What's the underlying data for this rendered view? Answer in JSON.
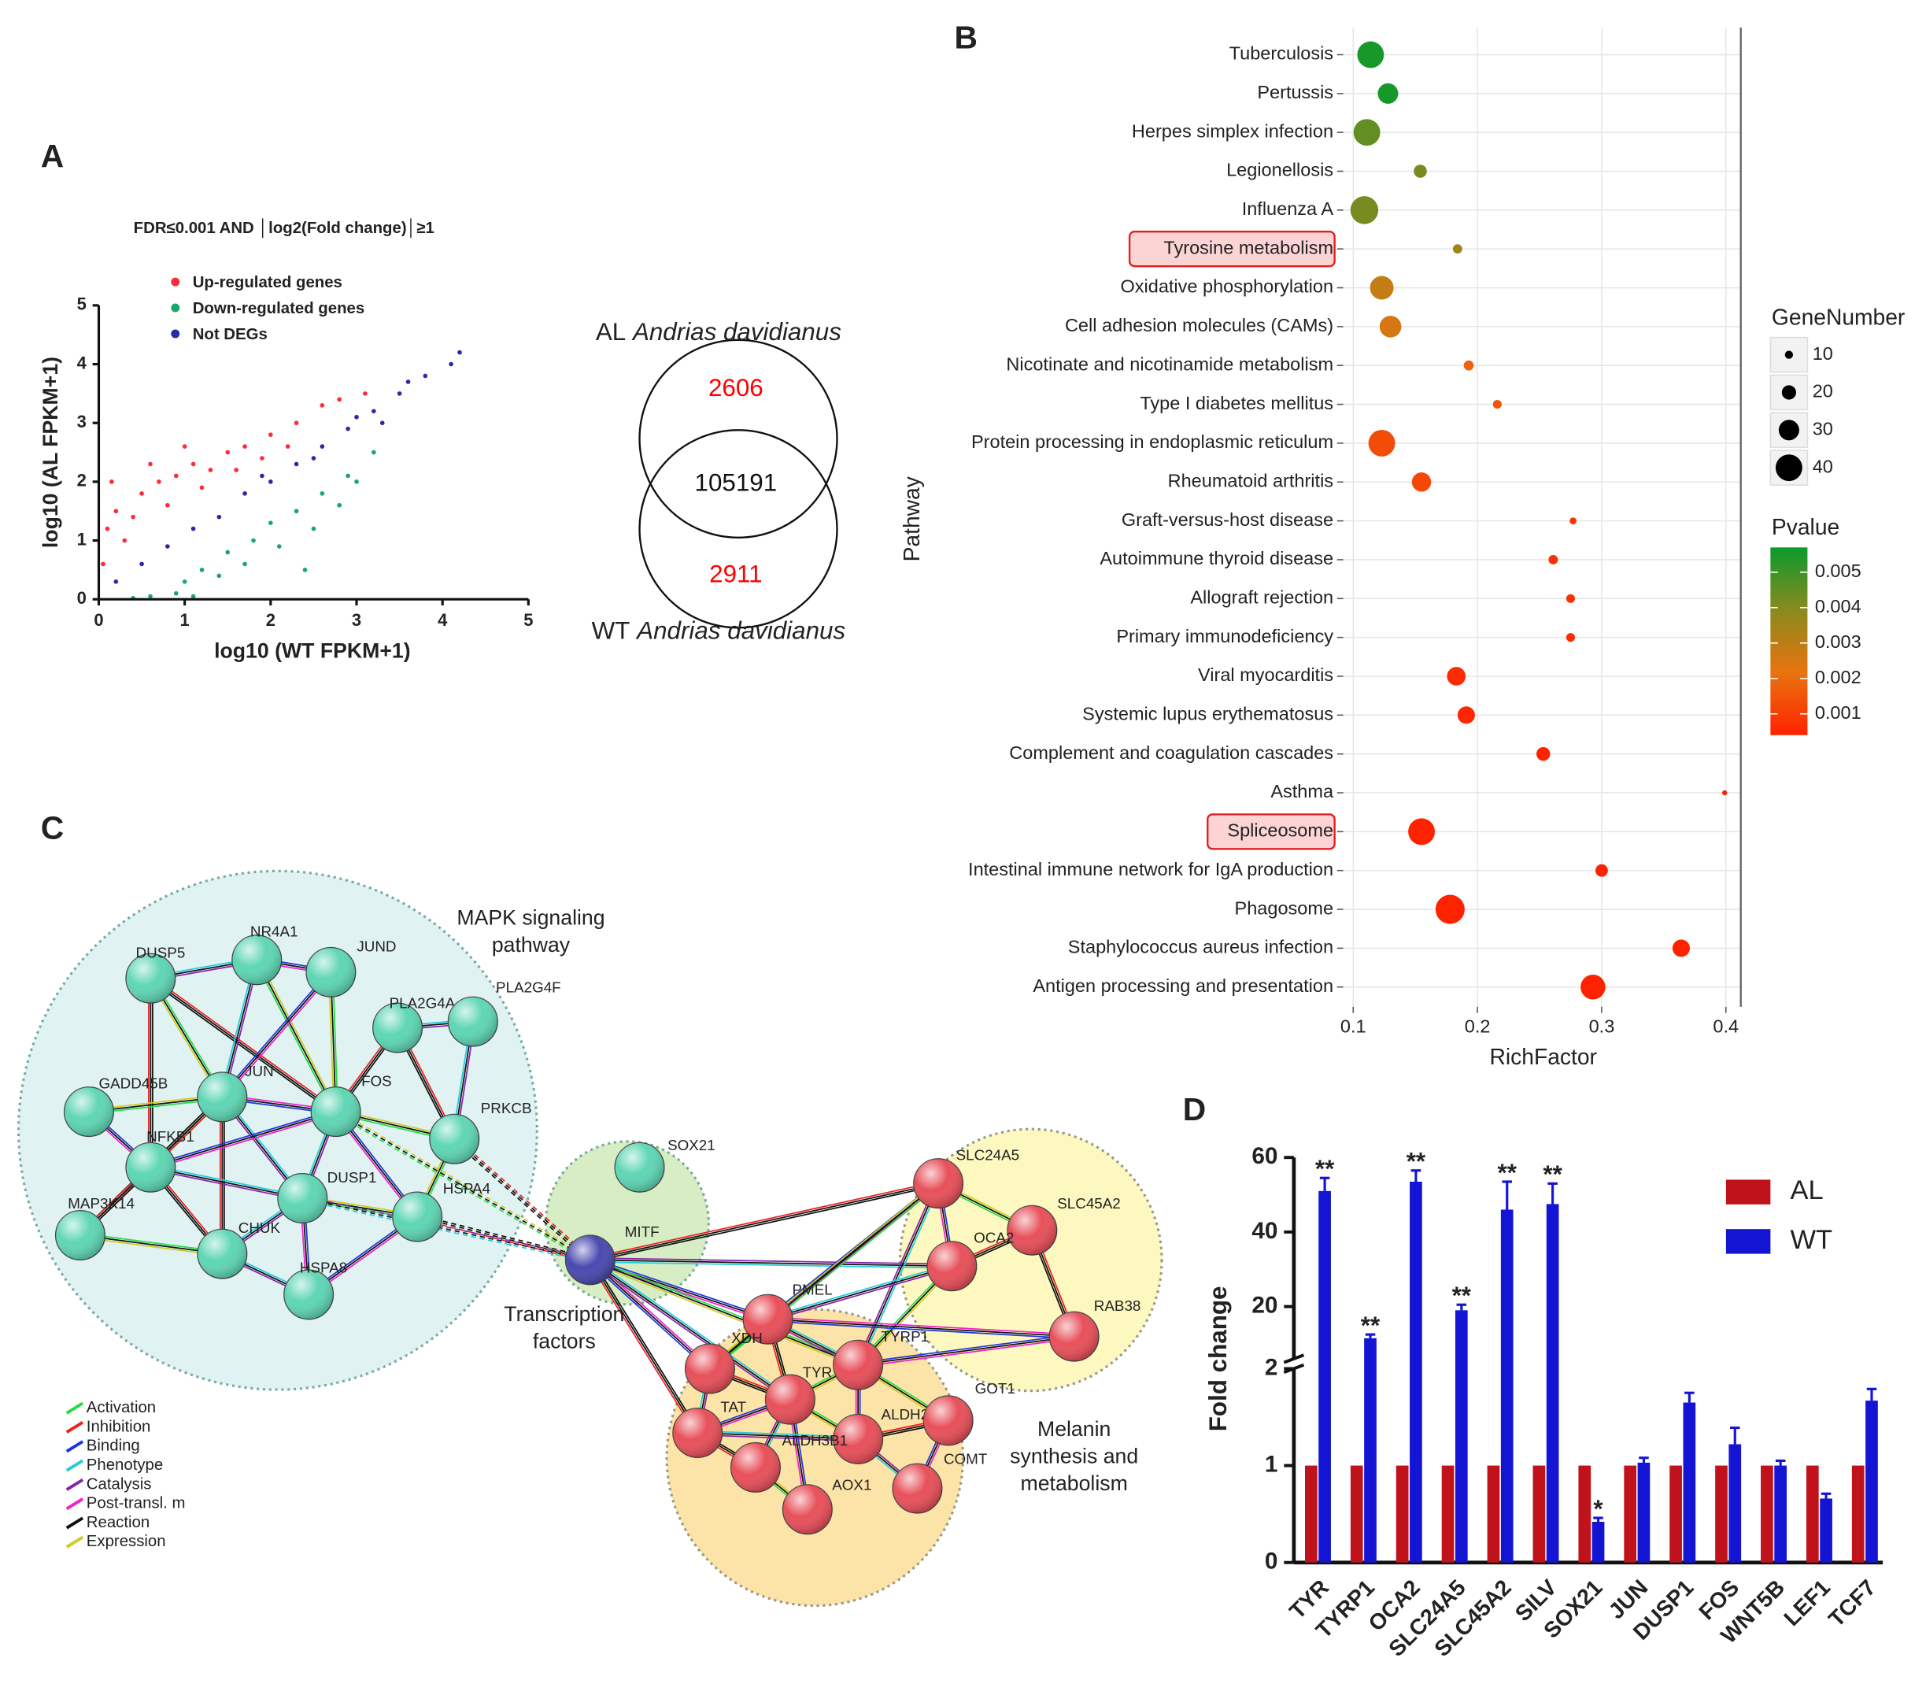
{
  "panel_labels": [
    "A",
    "B",
    "C",
    "D"
  ],
  "chart_data": [
    {
      "type": "scatter",
      "title": "FDR≤0.001 AND │log2(Fold change)│≥1",
      "xlabel": "log10 (WT FPKM+1)",
      "ylabel": "log10 (AL FPKM+1)",
      "xlim": [
        0,
        5
      ],
      "ylim": [
        0,
        5
      ],
      "xticks": [
        0,
        1,
        2,
        3,
        4,
        5
      ],
      "yticks": [
        0,
        1,
        2,
        3,
        4,
        5
      ],
      "series": [
        {
          "name": "Up-regulated genes",
          "color": "#ff2a3a",
          "x": [
            0.1,
            0.2,
            0.3,
            0.5,
            0.7,
            0.9,
            1.1,
            1.3,
            1.5,
            1.7,
            2.0,
            2.3,
            2.6,
            0.05,
            0.4,
            0.8,
            1.2,
            1.6,
            1.9,
            2.2,
            0.15,
            0.6,
            1.0,
            2.8,
            3.1
          ],
          "values": [
            1.2,
            1.5,
            1.0,
            1.8,
            2.0,
            2.1,
            2.3,
            2.2,
            2.5,
            2.6,
            2.8,
            3.0,
            3.3,
            0.6,
            1.4,
            1.6,
            1.9,
            2.2,
            2.4,
            2.6,
            2.0,
            2.3,
            2.6,
            3.4,
            3.5
          ]
        },
        {
          "name": "Down-regulated genes",
          "color": "#1aa86a",
          "x": [
            0.6,
            1.0,
            1.2,
            1.5,
            1.8,
            2.0,
            2.3,
            2.6,
            2.9,
            3.2,
            0.9,
            1.4,
            1.7,
            2.1,
            2.5,
            3.0,
            2.4,
            1.1,
            0.4,
            2.8
          ],
          "values": [
            0.05,
            0.3,
            0.5,
            0.8,
            1.0,
            1.3,
            1.5,
            1.8,
            2.1,
            2.5,
            0.1,
            0.4,
            0.6,
            0.9,
            1.2,
            2.0,
            0.5,
            0.05,
            0.02,
            1.6
          ]
        },
        {
          "name": "Not DEGs",
          "color": "#2a2aa8",
          "x": [
            0.2,
            0.5,
            0.8,
            1.1,
            1.4,
            1.7,
            2.0,
            2.3,
            2.6,
            2.9,
            3.2,
            3.5,
            3.8,
            4.1,
            3.0,
            3.3,
            3.6,
            1.9,
            2.5,
            4.2
          ],
          "values": [
            0.3,
            0.6,
            0.9,
            1.2,
            1.4,
            1.8,
            2.0,
            2.3,
            2.6,
            2.9,
            3.2,
            3.5,
            3.8,
            4.0,
            3.1,
            3.0,
            3.7,
            2.1,
            2.4,
            4.2
          ]
        }
      ]
    },
    {
      "type": "venn",
      "sets": [
        {
          "prefix": "AL",
          "name": "Andrias davidianus"
        },
        {
          "prefix": "WT",
          "name": "Andrias davidianus"
        }
      ],
      "values": [
        2606,
        105191,
        2911
      ],
      "value_colors": [
        "#ff0000",
        "#111111",
        "#ff0000"
      ]
    },
    {
      "type": "bubble",
      "xlabel": "RichFactor",
      "ylabel": "Pathway",
      "xlim": [
        0.092,
        0.412
      ],
      "xticks": [
        0.1,
        0.2,
        0.3,
        0.4
      ],
      "grid": true,
      "categories": [
        "Tuberculosis",
        "Pertussis",
        "Herpes simplex infection",
        "Legionellosis",
        "Influenza A",
        "Tyrosine metabolism",
        "Oxidative phosphorylation",
        "Cell adhesion molecules (CAMs)",
        "Nicotinate and nicotinamide metabolism",
        "Type I diabetes mellitus",
        "Protein processing in endoplasmic reticulum",
        "Rheumatoid arthritis",
        "Graft-versus-host disease",
        "Autoimmune thyroid disease",
        "Allograft rejection",
        "Primary immunodeficiency",
        "Viral myocarditis",
        "Systemic lupus erythematosus",
        "Complement and coagulation cascades",
        "Asthma",
        "Spliceosome",
        "Intestinal immune network for IgA production",
        "Phagosome",
        "Staphylococcus aureus infection",
        "Antigen processing and presentation"
      ],
      "highlighted": [
        5,
        20
      ],
      "x": [
        0.114,
        0.128,
        0.111,
        0.154,
        0.109,
        0.184,
        0.123,
        0.13,
        0.193,
        0.216,
        0.123,
        0.155,
        0.277,
        0.261,
        0.275,
        0.275,
        0.183,
        0.191,
        0.253,
        0.399,
        0.155,
        0.3,
        0.178,
        0.364,
        0.293
      ],
      "sizes": [
        40,
        30,
        40,
        18,
        42,
        12,
        35,
        32,
        13,
        11,
        40,
        28,
        8,
        12,
        11,
        11,
        27,
        25,
        19,
        5,
        40,
        17,
        44,
        25,
        37
      ],
      "pvalues": [
        0.0055,
        0.0055,
        0.0045,
        0.0042,
        0.0042,
        0.0035,
        0.0028,
        0.0025,
        0.0018,
        0.0015,
        0.0013,
        0.0012,
        0.0008,
        0.0007,
        0.0007,
        0.0006,
        0.0006,
        0.0005,
        0.0004,
        0.0004,
        0.0003,
        0.0003,
        0.0002,
        0.0002,
        0.0001
      ],
      "size_legend": {
        "title": "GeneNumber",
        "values": [
          10,
          20,
          30,
          40
        ]
      },
      "colorbar": {
        "title": "Pvalue",
        "lim": [
          0.0004,
          0.0057
        ],
        "ticks": [
          0.001,
          0.002,
          0.003,
          0.004,
          0.005
        ],
        "colors": [
          "#ff2200",
          "#e8740f",
          "#8a8a1e",
          "#0b9a2c"
        ]
      }
    },
    {
      "type": "bar",
      "ylabel": "Fold change",
      "ylim": [
        0,
        60
      ],
      "ybreak": [
        2,
        6
      ],
      "yticks": [
        0,
        1,
        2,
        20,
        40,
        60
      ],
      "categories": [
        "TYR",
        "TYRP1",
        "OCA2",
        "SLC24A5",
        "SLC45A2",
        "SILV",
        "SOX21",
        "JUN",
        "DUSP1",
        "FOS",
        "WNT5B",
        "LEF1",
        "TCF7"
      ],
      "series": [
        {
          "name": "AL",
          "color": "#c0121b",
          "values": [
            1,
            1,
            1,
            1,
            1,
            1,
            1,
            1,
            1,
            1,
            1,
            1,
            1
          ]
        },
        {
          "name": "WT",
          "color": "#1414d4",
          "values": [
            51,
            11.5,
            53.5,
            19,
            46,
            47.5,
            0.42,
            1.03,
            1.65,
            1.22,
            1.0,
            0.66,
            1.67
          ],
          "errors": [
            3.5,
            1,
            3,
            1.5,
            7.5,
            5.5,
            0.04,
            0.05,
            0.1,
            0.17,
            0.05,
            0.05,
            0.12
          ],
          "significance": [
            "**",
            "**",
            "**",
            "**",
            "**",
            "**",
            "*",
            null,
            null,
            null,
            null,
            null,
            null
          ]
        }
      ]
    }
  ],
  "network": {
    "groups": [
      [
        "MAPK signaling",
        "pathway"
      ],
      [
        "Transcription",
        "factors"
      ],
      [
        "Melanin",
        "synthesis and",
        "metabolism"
      ]
    ],
    "nodes": [
      {
        "label": "DUSP5",
        "color": "#5fd6b4"
      },
      {
        "label": "NR4A1",
        "color": "#5fd6b4"
      },
      {
        "label": "JUND",
        "color": "#5fd6b4"
      },
      {
        "label": "PLA2G4A",
        "color": "#5fd6b4"
      },
      {
        "label": "PLA2G4F",
        "color": "#5fd6b4"
      },
      {
        "label": "GADD45B",
        "color": "#5fd6b4"
      },
      {
        "label": "JUN",
        "color": "#5fd6b4"
      },
      {
        "label": "FOS",
        "color": "#5fd6b4"
      },
      {
        "label": "PRKCB",
        "color": "#5fd6b4"
      },
      {
        "label": "NFKB1",
        "color": "#5fd6b4"
      },
      {
        "label": "DUSP1",
        "color": "#5fd6b4"
      },
      {
        "label": "HSPA4",
        "color": "#5fd6b4"
      },
      {
        "label": "MAP3K14",
        "color": "#5fd6b4"
      },
      {
        "label": "CHUK",
        "color": "#5fd6b4"
      },
      {
        "label": "HSPA8",
        "color": "#5fd6b4"
      },
      {
        "label": "SOX21",
        "color": "#5fd6b4"
      },
      {
        "label": "MITF",
        "color": "#4a4ab0"
      },
      {
        "label": "SLC24A5",
        "color": "#e8505a"
      },
      {
        "label": "SLC45A2",
        "color": "#e8505a"
      },
      {
        "label": "OCA2",
        "color": "#e8505a"
      },
      {
        "label": "RAB38",
        "color": "#e8505a"
      },
      {
        "label": "PMEL",
        "color": "#e8505a"
      },
      {
        "label": "XDH",
        "color": "#e8505a"
      },
      {
        "label": "TYRP1",
        "color": "#e8505a"
      },
      {
        "label": "TYR",
        "color": "#e8505a"
      },
      {
        "label": "TAT",
        "color": "#e8505a"
      },
      {
        "label": "ALDH2",
        "color": "#e8505a"
      },
      {
        "label": "GOT1",
        "color": "#e8505a"
      },
      {
        "label": "ALDH3B1",
        "color": "#e8505a"
      },
      {
        "label": "AOX1",
        "color": "#e8505a"
      },
      {
        "label": "COMT",
        "color": "#e8505a"
      }
    ],
    "legend": [
      {
        "label": "Activation",
        "color": "#22dd44"
      },
      {
        "label": "Inhibition",
        "color": "#ee2222"
      },
      {
        "label": "Binding",
        "color": "#2233dd"
      },
      {
        "label": "Phenotype",
        "color": "#22ccdd"
      },
      {
        "label": "Catalysis",
        "color": "#8822aa"
      },
      {
        "label": "Post-transl. m",
        "color": "#ee22cc"
      },
      {
        "label": "Reaction",
        "color": "#111111"
      },
      {
        "label": "Expression",
        "color": "#cccc22"
      }
    ]
  }
}
